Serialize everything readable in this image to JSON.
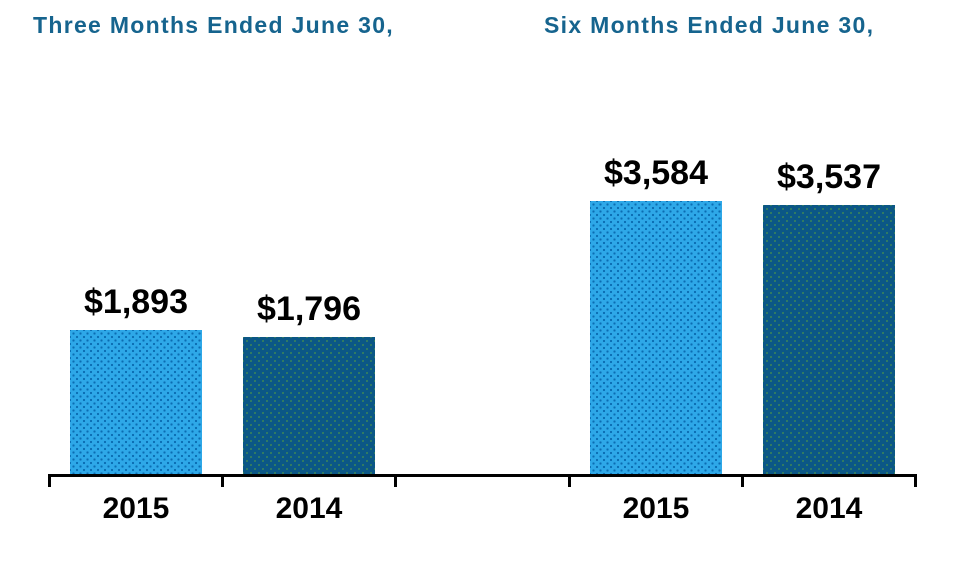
{
  "chart_data": {
    "type": "bar",
    "groups": [
      {
        "title": "Three Months Ended June 30,",
        "bars": [
          {
            "category": "2015",
            "series": "2015",
            "value": 1893,
            "label": "$1,893"
          },
          {
            "category": "2014",
            "series": "2014",
            "value": 1796,
            "label": "$1,796"
          }
        ]
      },
      {
        "title": "Six Months Ended June 30,",
        "bars": [
          {
            "category": "2015",
            "series": "2015",
            "value": 3584,
            "label": "$3,584"
          },
          {
            "category": "2014",
            "series": "2014",
            "value": 3537,
            "label": "$3,537"
          }
        ]
      }
    ],
    "series_colors": {
      "2015": "#2EA8E8",
      "2014": "#0B5786"
    },
    "title_color": "#16648E",
    "label_color": "#000000",
    "axis_color": "#000000",
    "ylim": [
      0,
      3900
    ],
    "grid": false,
    "legend": "none",
    "y_axis_shown": false
  }
}
